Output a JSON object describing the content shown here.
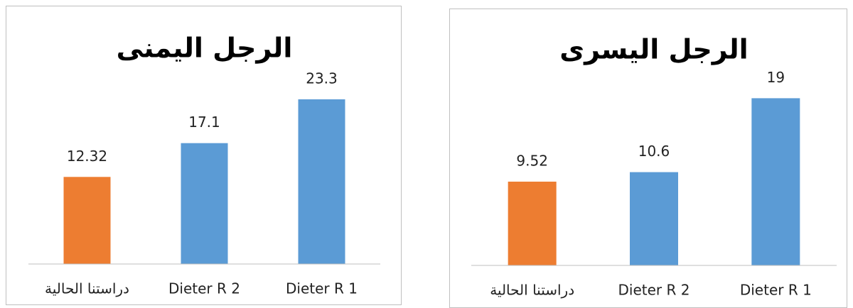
{
  "chart_data": [
    {
      "type": "bar",
      "title": "الرجل اليمنى",
      "categories": [
        "دراستنا الحالية",
        "Dieter R 2",
        "Dieter R 1"
      ],
      "values": [
        12.32,
        17.1,
        23.3
      ],
      "colors": [
        "#ed7d31",
        "#5b9bd5",
        "#5b9bd5"
      ],
      "ylim": [
        0,
        25
      ]
    },
    {
      "type": "bar",
      "title": "الرجل اليسرى",
      "categories": [
        "دراستنا الحالية",
        "Dieter R 2",
        "Dieter R 1"
      ],
      "values": [
        9.52,
        10.6,
        19
      ],
      "colors": [
        "#ed7d31",
        "#5b9bd5",
        "#5b9bd5"
      ],
      "ylim": [
        0,
        20
      ]
    }
  ]
}
